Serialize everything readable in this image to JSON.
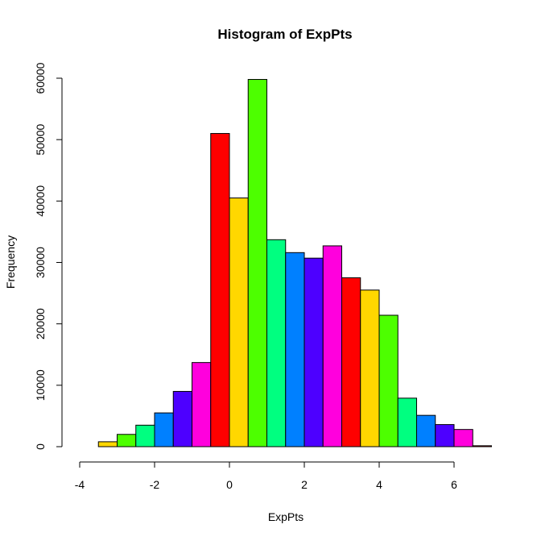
{
  "chart_data": {
    "type": "bar",
    "title": "Histogram of ExpPts",
    "xlabel": "ExpPts",
    "ylabel": "Frequency",
    "xlim": [
      -4,
      7
    ],
    "ylim": [
      0,
      60000
    ],
    "x_ticks": [
      -4,
      -2,
      0,
      2,
      4,
      6
    ],
    "y_ticks": [
      0,
      10000,
      20000,
      30000,
      40000,
      50000,
      60000
    ],
    "bin_width": 0.5,
    "bins": [
      {
        "start": -3.5,
        "end": -3.0,
        "count": 800,
        "color": "#FFD700"
      },
      {
        "start": -3.0,
        "end": -2.5,
        "count": 2000,
        "color": "#4DFF00"
      },
      {
        "start": -2.5,
        "end": -2.0,
        "count": 3500,
        "color": "#00FF80"
      },
      {
        "start": -2.0,
        "end": -1.5,
        "count": 5500,
        "color": "#0080FF"
      },
      {
        "start": -1.5,
        "end": -1.0,
        "count": 9000,
        "color": "#4D00FF"
      },
      {
        "start": -1.0,
        "end": -0.5,
        "count": 13700,
        "color": "#FF00DD"
      },
      {
        "start": -0.5,
        "end": 0.0,
        "count": 51000,
        "color": "#FF0000"
      },
      {
        "start": 0.0,
        "end": 0.5,
        "count": 40500,
        "color": "#FFD700"
      },
      {
        "start": 0.5,
        "end": 1.0,
        "count": 59800,
        "color": "#4DFF00"
      },
      {
        "start": 1.0,
        "end": 1.5,
        "count": 33700,
        "color": "#00FF80"
      },
      {
        "start": 1.5,
        "end": 2.0,
        "count": 31600,
        "color": "#0080FF"
      },
      {
        "start": 2.0,
        "end": 2.5,
        "count": 30700,
        "color": "#4D00FF"
      },
      {
        "start": 2.5,
        "end": 3.0,
        "count": 32700,
        "color": "#FF00DD"
      },
      {
        "start": 3.0,
        "end": 3.5,
        "count": 27500,
        "color": "#FF0000"
      },
      {
        "start": 3.5,
        "end": 4.0,
        "count": 25500,
        "color": "#FFD700"
      },
      {
        "start": 4.0,
        "end": 4.5,
        "count": 21400,
        "color": "#4DFF00"
      },
      {
        "start": 4.5,
        "end": 5.0,
        "count": 7900,
        "color": "#00FF80"
      },
      {
        "start": 5.0,
        "end": 5.5,
        "count": 5100,
        "color": "#0080FF"
      },
      {
        "start": 5.5,
        "end": 6.0,
        "count": 3600,
        "color": "#4D00FF"
      },
      {
        "start": 6.0,
        "end": 6.5,
        "count": 2800,
        "color": "#FF00DD"
      },
      {
        "start": 6.5,
        "end": 7.0,
        "count": 150,
        "color": "#FF0000"
      }
    ]
  }
}
